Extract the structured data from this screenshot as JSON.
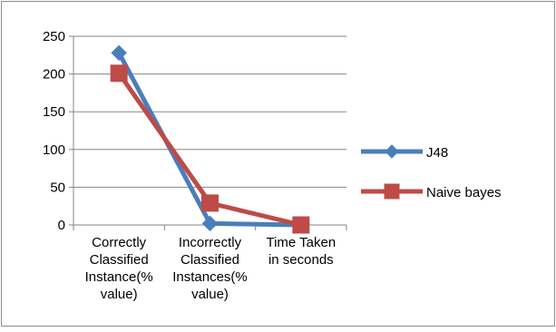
{
  "chart_data": {
    "type": "line",
    "categories": [
      [
        "Correctly",
        "Classified",
        "Instance(%",
        "value)"
      ],
      [
        "Incorrectly",
        "Classified",
        "Instances(%",
        "value)"
      ],
      [
        "Time Taken",
        "in seconds"
      ]
    ],
    "series": [
      {
        "name": "J48",
        "values": [
          228,
          2,
          0
        ],
        "color": "#4a7ebb",
        "marker": "diamond"
      },
      {
        "name": "Naive bayes",
        "values": [
          201,
          29,
          0
        ],
        "color": "#be4b48",
        "marker": "square"
      }
    ],
    "yticks": [
      "0",
      "50",
      "100",
      "150",
      "200",
      "250"
    ],
    "ylim": [
      0,
      250
    ],
    "grid": true,
    "legend_position": "right"
  }
}
